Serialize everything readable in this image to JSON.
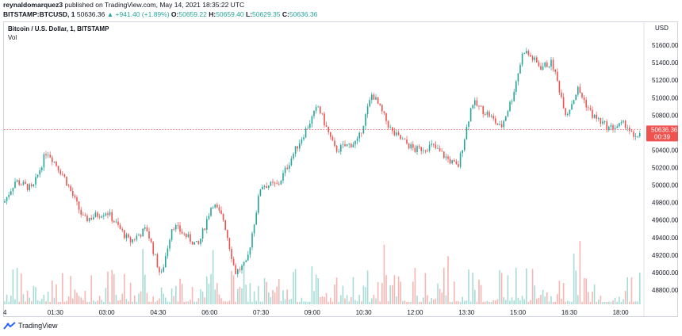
{
  "header": {
    "author": "reynaldomarquez3",
    "published": " published on TradingView.com, May 14, 2021 18:35:22 UTC"
  },
  "ohlc": {
    "symbol": "BITSTAMP:BTCUSD, 1",
    "last": "50636.36",
    "change": "▲ +941.40 (+1.89%)",
    "o_label": "O:",
    "o": "50659.22",
    "h_label": "H:",
    "h": "50659.40",
    "l_label": "L:",
    "l": "50629.35",
    "c_label": "C:",
    "c": "50636.36"
  },
  "legend": {
    "title": "Bitcoin / U.S. Dollar, 1, BITSTAMP",
    "vol": "Vol"
  },
  "axis": {
    "currency": "USD",
    "price_label": "50636.36",
    "countdown": "00:39"
  },
  "brand": {
    "name": "TradingView"
  },
  "colors": {
    "up": "#26a69a",
    "down": "#ef5350",
    "price_tag": "#ef5350",
    "up_volume": "#a7dcd6",
    "down_volume": "#f6b6b4"
  },
  "chart_data": {
    "type": "candlestick",
    "title": "Bitcoin / U.S. Dollar, 1, BITSTAMP",
    "ylabel": "USD",
    "ylim": [
      48600,
      51800
    ],
    "yticks": [
      48800,
      49000,
      49200,
      49400,
      49600,
      49800,
      50000,
      50200,
      50400,
      50600,
      50800,
      51000,
      51200,
      51400,
      51600
    ],
    "xticks": [
      "01:30",
      "03:00",
      "04:30",
      "06:00",
      "07:30",
      "09:00",
      "10:30",
      "12:00",
      "13:30",
      "15:00",
      "16:30",
      "18:00"
    ],
    "x_start_label": "4",
    "last_price": 50636.36,
    "price_path": [
      {
        "t": "00:00",
        "price": 49800
      },
      {
        "t": "00:20",
        "price": 50050
      },
      {
        "t": "00:50",
        "price": 49950
      },
      {
        "t": "01:15",
        "price": 50400
      },
      {
        "t": "01:45",
        "price": 50100
      },
      {
        "t": "02:20",
        "price": 49600
      },
      {
        "t": "03:00",
        "price": 49700
      },
      {
        "t": "03:40",
        "price": 49350
      },
      {
        "t": "04:10",
        "price": 49500
      },
      {
        "t": "04:35",
        "price": 48950
      },
      {
        "t": "04:55",
        "price": 49550
      },
      {
        "t": "05:40",
        "price": 49300
      },
      {
        "t": "06:05",
        "price": 49800
      },
      {
        "t": "06:25",
        "price": 49600
      },
      {
        "t": "06:45",
        "price": 49000
      },
      {
        "t": "07:05",
        "price": 49100
      },
      {
        "t": "07:30",
        "price": 50000
      },
      {
        "t": "08:00",
        "price": 50000
      },
      {
        "t": "08:30",
        "price": 50400
      },
      {
        "t": "09:10",
        "price": 50900
      },
      {
        "t": "09:40",
        "price": 50400
      },
      {
        "t": "10:20",
        "price": 50500
      },
      {
        "t": "10:45",
        "price": 51050
      },
      {
        "t": "11:20",
        "price": 50600
      },
      {
        "t": "12:00",
        "price": 50400
      },
      {
        "t": "12:30",
        "price": 50450
      },
      {
        "t": "13:15",
        "price": 50200
      },
      {
        "t": "13:40",
        "price": 50950
      },
      {
        "t": "14:10",
        "price": 50800
      },
      {
        "t": "14:30",
        "price": 50650
      },
      {
        "t": "14:50",
        "price": 51000
      },
      {
        "t": "15:10",
        "price": 51550
      },
      {
        "t": "15:40",
        "price": 51350
      },
      {
        "t": "16:00",
        "price": 51400
      },
      {
        "t": "16:25",
        "price": 50800
      },
      {
        "t": "16:45",
        "price": 51100
      },
      {
        "t": "17:10",
        "price": 50800
      },
      {
        "t": "17:40",
        "price": 50650
      },
      {
        "t": "18:10",
        "price": 50700
      },
      {
        "t": "18:25",
        "price": 50500
      },
      {
        "t": "18:35",
        "price": 50636
      }
    ]
  }
}
